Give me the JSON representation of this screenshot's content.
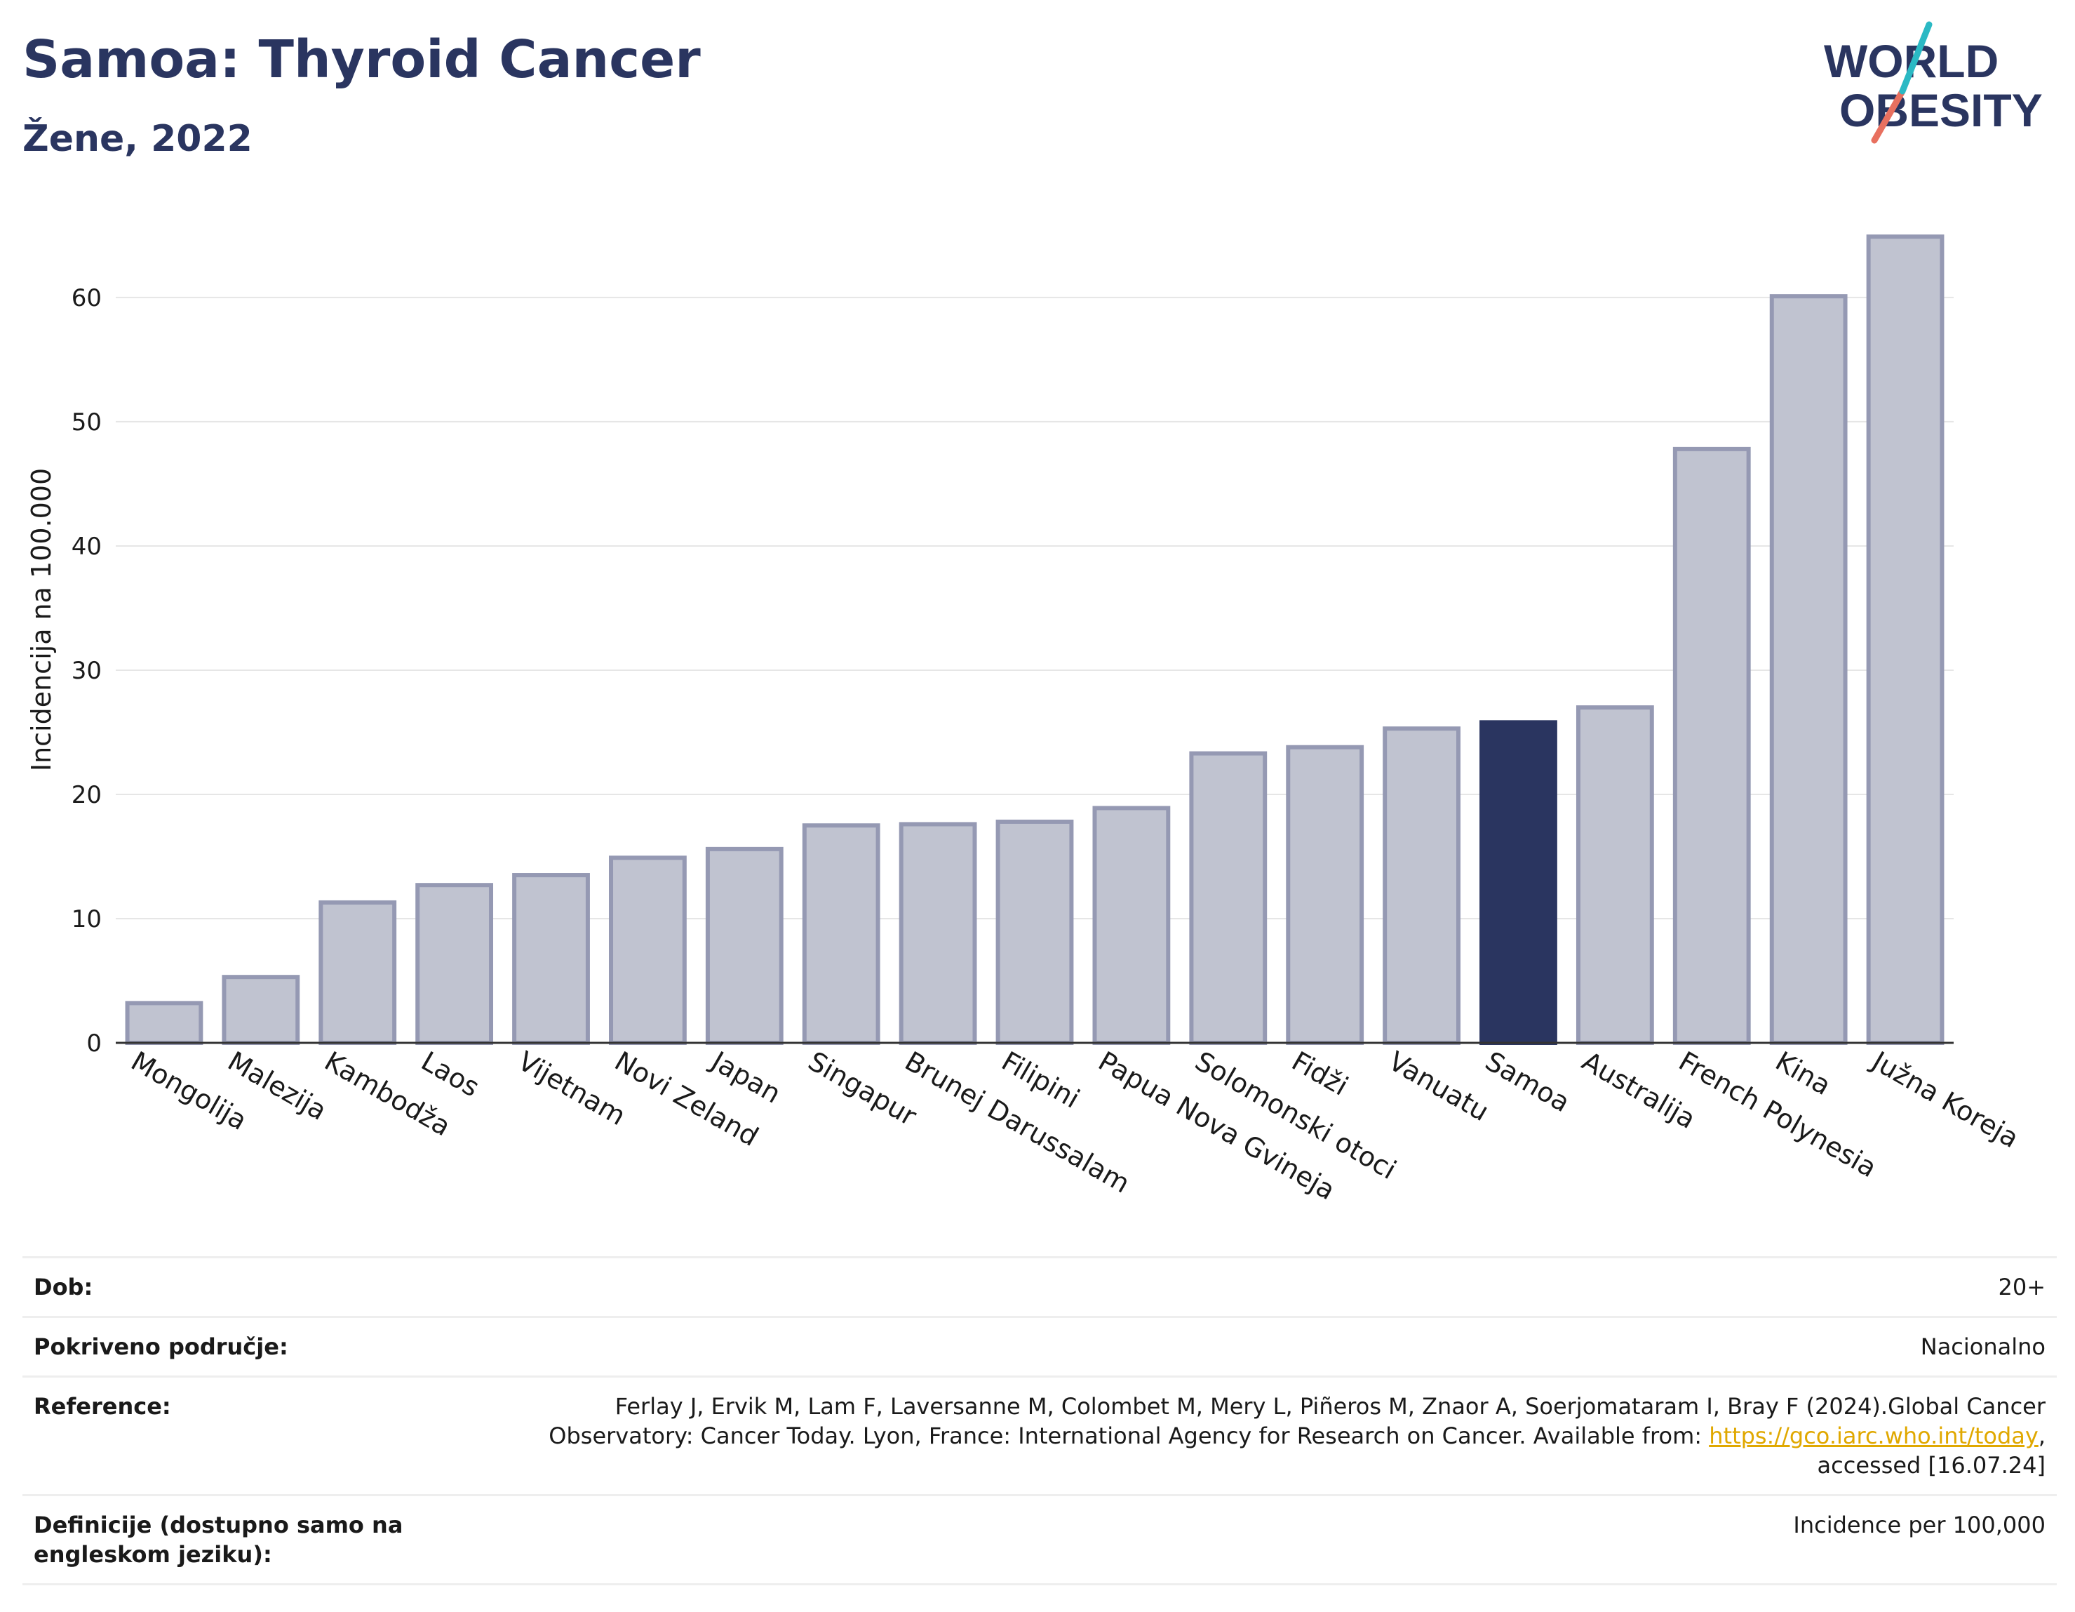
{
  "header": {
    "title": "Samoa: Thyroid Cancer",
    "subtitle": "Žene, 2022"
  },
  "logo": {
    "line1": "WORLD",
    "line2": "OBESITY",
    "colors": {
      "text": "#2a3560",
      "slash_teal": "#2bb9c4",
      "slash_red": "#e8705f"
    }
  },
  "chart_data": {
    "type": "bar",
    "title": "",
    "xlabel": "",
    "ylabel": "Incidencija na 100.000",
    "ylim": [
      0,
      67
    ],
    "yticks": [
      0,
      10,
      20,
      30,
      40,
      50,
      60
    ],
    "grid": true,
    "highlight": "Samoa",
    "colors": {
      "bar": "#c0c3d0",
      "bar_border": "#9599b3",
      "highlight": "#2a3560",
      "grid": "#e6e6e6"
    },
    "categories": [
      "Mongolija",
      "Malezija",
      "Kambodža",
      "Laos",
      "Vijetnam",
      "Novi Zeland",
      "Japan",
      "Singapur",
      "Brunej Darussalam",
      "Filipini",
      "Papua Nova Gvineja",
      "Solomonski otoci",
      "Fidži",
      "Vanuatu",
      "Samoa",
      "Australija",
      "French Polynesia",
      "Kina",
      "Južna Koreja"
    ],
    "values": [
      3.2,
      5.3,
      11.3,
      12.7,
      13.5,
      14.9,
      15.6,
      17.5,
      17.6,
      17.8,
      18.9,
      23.3,
      23.8,
      25.3,
      25.8,
      27.0,
      47.8,
      60.1,
      64.9
    ]
  },
  "meta": {
    "rows": [
      {
        "key": "Dob:",
        "value": "20+"
      },
      {
        "key": "Pokriveno područje:",
        "value": "Nacionalno"
      },
      {
        "key": "Reference:",
        "value_line1": "Ferlay J, Ervik M, Lam F, Laversanne M, Colombet M, Mery L, Piñeros M, Znaor A, Soerjomataram I, Bray F (2024).Global Cancer",
        "value_line2_pre": "Observatory: Cancer Today. Lyon, France: International Agency for Research on Cancer. Available from: ",
        "value_link": "https://gco.iarc.who.int/today",
        "value_line2_post": ",",
        "value_line3": "accessed [16.07.24]"
      },
      {
        "key": "Definicije (dostupno samo na engleskom jeziku):",
        "value": "Incidence per 100,000"
      }
    ]
  }
}
